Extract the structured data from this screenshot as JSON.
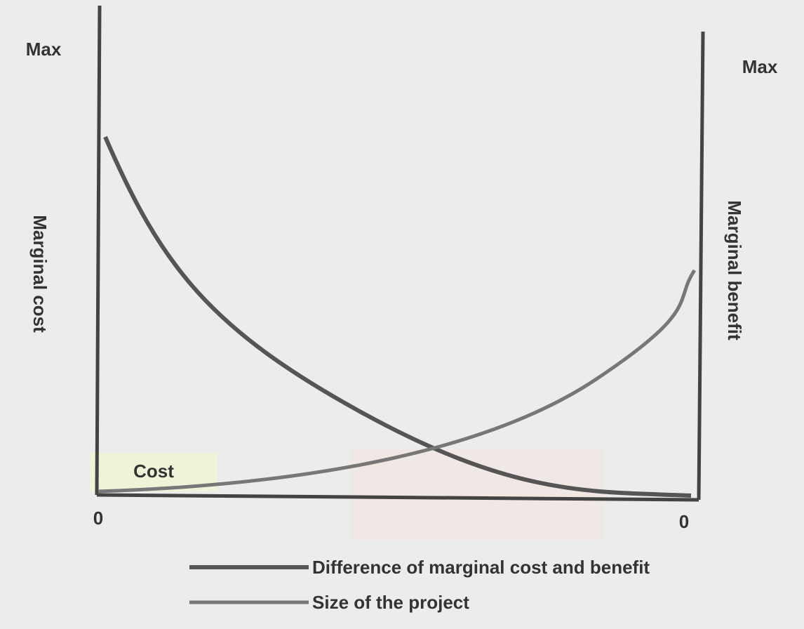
{
  "diagram": {
    "left_axis": {
      "top_label": "Max",
      "bottom_label": "0",
      "title": "Marginal cost"
    },
    "right_axis": {
      "top_label": "Max",
      "bottom_label": "0",
      "title": "Marginal benefit"
    },
    "baseline_label": "Cost",
    "legend": [
      "Difference of marginal cost and benefit",
      "Size of the project"
    ]
  }
}
